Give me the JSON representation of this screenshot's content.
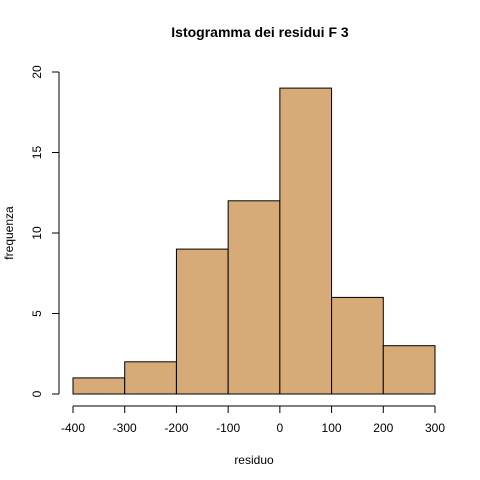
{
  "chart_data": {
    "type": "bar",
    "title": "Istogramma dei residui F 3",
    "xlabel": "residuo",
    "ylabel": "frequenza",
    "bins": [
      {
        "from": -400,
        "to": -300,
        "count": 1
      },
      {
        "from": -300,
        "to": -200,
        "count": 2
      },
      {
        "from": -200,
        "to": -100,
        "count": 9
      },
      {
        "from": -100,
        "to": 0,
        "count": 12
      },
      {
        "from": 0,
        "to": 100,
        "count": 19
      },
      {
        "from": 100,
        "to": 200,
        "count": 6
      },
      {
        "from": 200,
        "to": 300,
        "count": 3
      }
    ],
    "xlim": [
      -400,
      300
    ],
    "ylim": [
      0,
      20
    ],
    "x_ticks": [
      "-400",
      "-300",
      "-200",
      "-100",
      "0",
      "100",
      "200",
      "300"
    ],
    "y_ticks": [
      "0",
      "5",
      "10",
      "15",
      "20"
    ],
    "bar_color": "#d6ab77",
    "grid": false,
    "legend": "none"
  }
}
